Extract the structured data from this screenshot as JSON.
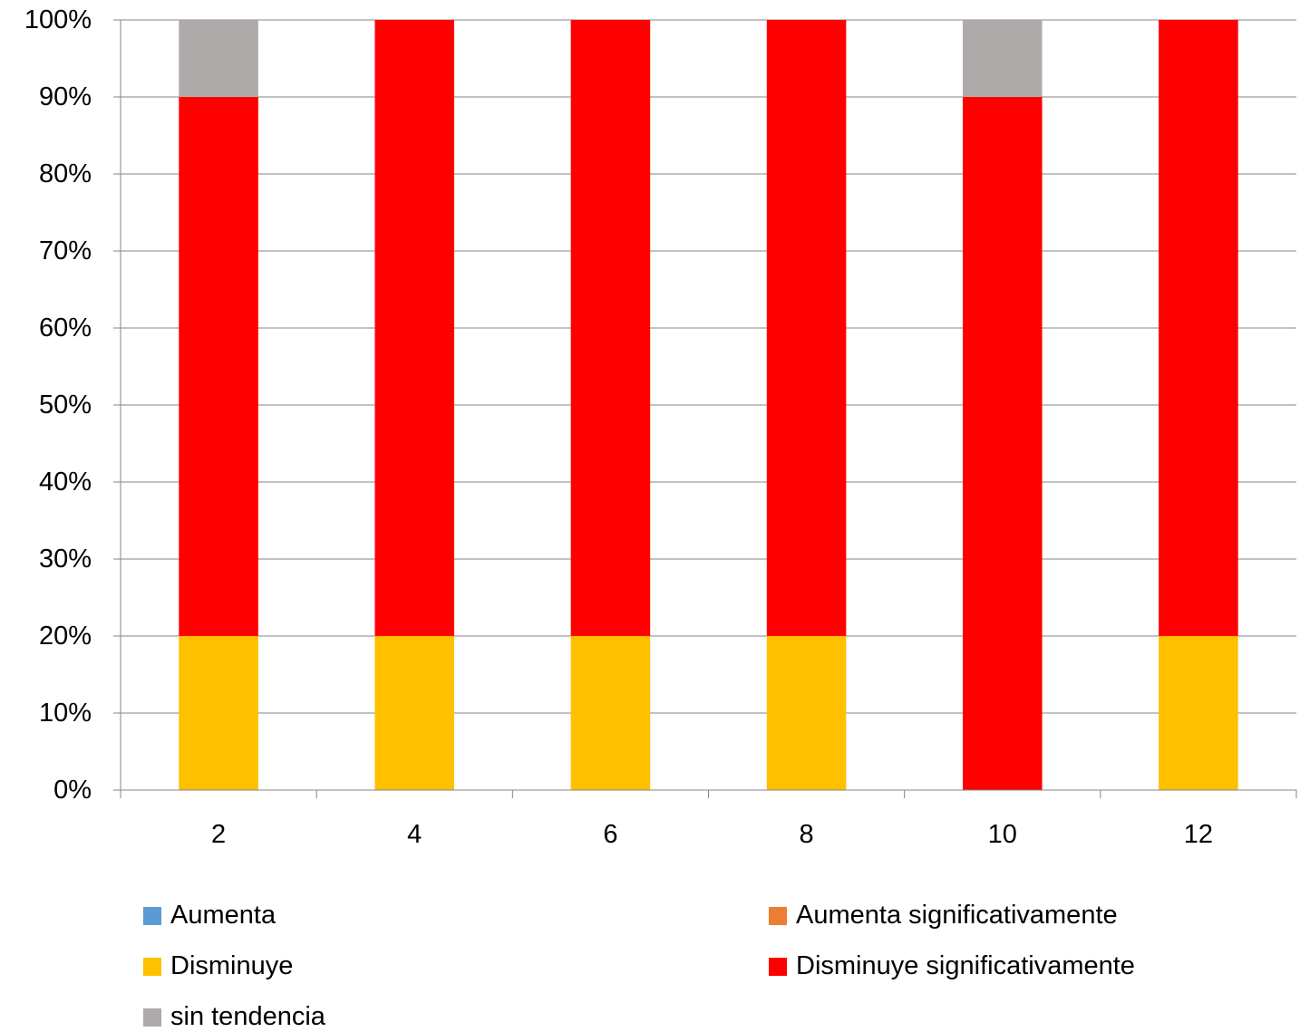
{
  "chart_data": {
    "type": "bar",
    "stacked": true,
    "percent": true,
    "categories": [
      "2",
      "4",
      "6",
      "8",
      "10",
      "12"
    ],
    "series": [
      {
        "name": "Aumenta",
        "color": "#5B9BD5",
        "values": [
          0,
          0,
          0,
          0,
          0,
          0
        ]
      },
      {
        "name": "Aumenta significativamente",
        "color": "#ED7D31",
        "values": [
          0,
          0,
          0,
          0,
          0,
          0
        ]
      },
      {
        "name": "Disminuye",
        "color": "#FFC000",
        "values": [
          20,
          20,
          20,
          20,
          0,
          20
        ]
      },
      {
        "name": "Disminuye significativamente",
        "color": "#FF0000",
        "values": [
          70,
          80,
          80,
          80,
          90,
          80
        ]
      },
      {
        "name": "sin tendencia",
        "color": "#AEAAAA",
        "values": [
          10,
          0,
          0,
          0,
          10,
          0
        ]
      }
    ],
    "ylim": [
      0,
      100
    ],
    "yticks": [
      "0%",
      "10%",
      "20%",
      "30%",
      "40%",
      "50%",
      "60%",
      "70%",
      "80%",
      "90%",
      "100%"
    ],
    "grid": true,
    "legend_position": "bottom",
    "title": "",
    "xlabel": "",
    "ylabel": ""
  }
}
